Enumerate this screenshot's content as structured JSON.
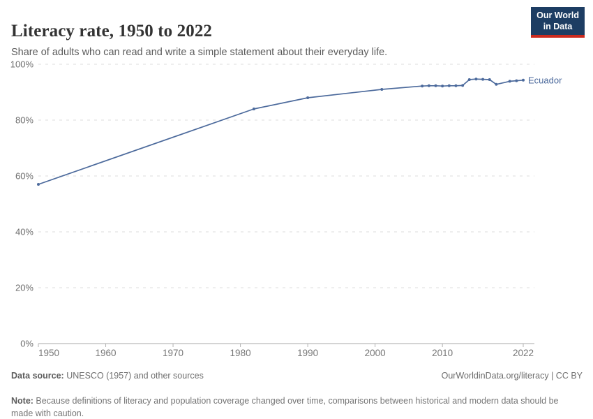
{
  "chart_data": {
    "type": "line",
    "title": "Literacy rate, 1950 to 2022",
    "subtitle": "Share of adults who can read and write a simple statement about their everyday life.",
    "xlabel": "",
    "ylabel": "",
    "xlim": [
      1950,
      2022
    ],
    "ylim": [
      0,
      100
    ],
    "grid": "horizontal-dashed",
    "xticks": [
      1950,
      1960,
      1970,
      1980,
      1990,
      2000,
      2010,
      2022
    ],
    "yticks": [
      0,
      20,
      40,
      60,
      80,
      100
    ],
    "ytick_suffix": "%",
    "legend_position": "end-of-line-label",
    "series": [
      {
        "name": "Ecuador",
        "color": "#4c6a9c",
        "points": [
          [
            1950,
            57.0
          ],
          [
            1982,
            84.0
          ],
          [
            1990,
            88.0
          ],
          [
            2001,
            91.0
          ],
          [
            2007,
            92.2
          ],
          [
            2008,
            92.3
          ],
          [
            2009,
            92.3
          ],
          [
            2010,
            92.2
          ],
          [
            2011,
            92.3
          ],
          [
            2012,
            92.3
          ],
          [
            2013,
            92.4
          ],
          [
            2014,
            94.5
          ],
          [
            2015,
            94.7
          ],
          [
            2016,
            94.6
          ],
          [
            2017,
            94.5
          ],
          [
            2018,
            92.8
          ],
          [
            2020,
            93.9
          ],
          [
            2021,
            94.1
          ],
          [
            2022,
            94.3
          ]
        ]
      }
    ]
  },
  "logo": {
    "line1": "Our World",
    "line2": "in Data",
    "bg_color": "#1d3d63",
    "accent_color": "#cc2a1e"
  },
  "footer": {
    "source_label": "Data source:",
    "source_text": " UNESCO (1957) and other sources",
    "attribution": "OurWorldinData.org/literacy | CC BY",
    "note_label": "Note:",
    "note_text": " Because definitions of literacy and population coverage changed over time, comparisons between historical and modern data should be made with caution."
  }
}
